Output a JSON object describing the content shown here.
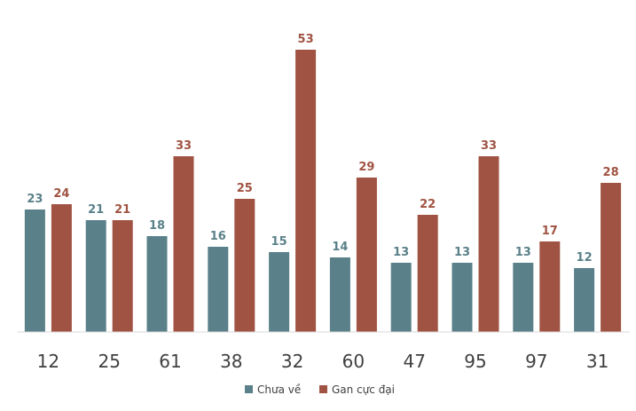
{
  "chart_data": {
    "type": "bar",
    "categories": [
      "12",
      "25",
      "61",
      "38",
      "32",
      "60",
      "47",
      "95",
      "97",
      "31"
    ],
    "series": [
      {
        "name": "Chưa về",
        "values": [
          23,
          21,
          18,
          16,
          15,
          14,
          13,
          13,
          13,
          12
        ],
        "color": "#5a8089"
      },
      {
        "name": "Gan cực đại",
        "values": [
          24,
          21,
          33,
          25,
          53,
          29,
          22,
          33,
          17,
          28
        ],
        "color": "#a05342"
      }
    ],
    "title": "",
    "xlabel": "",
    "ylabel": "",
    "ylim": [
      0,
      60
    ],
    "grid": false,
    "data_labels": true,
    "legend_position": "bottom"
  }
}
